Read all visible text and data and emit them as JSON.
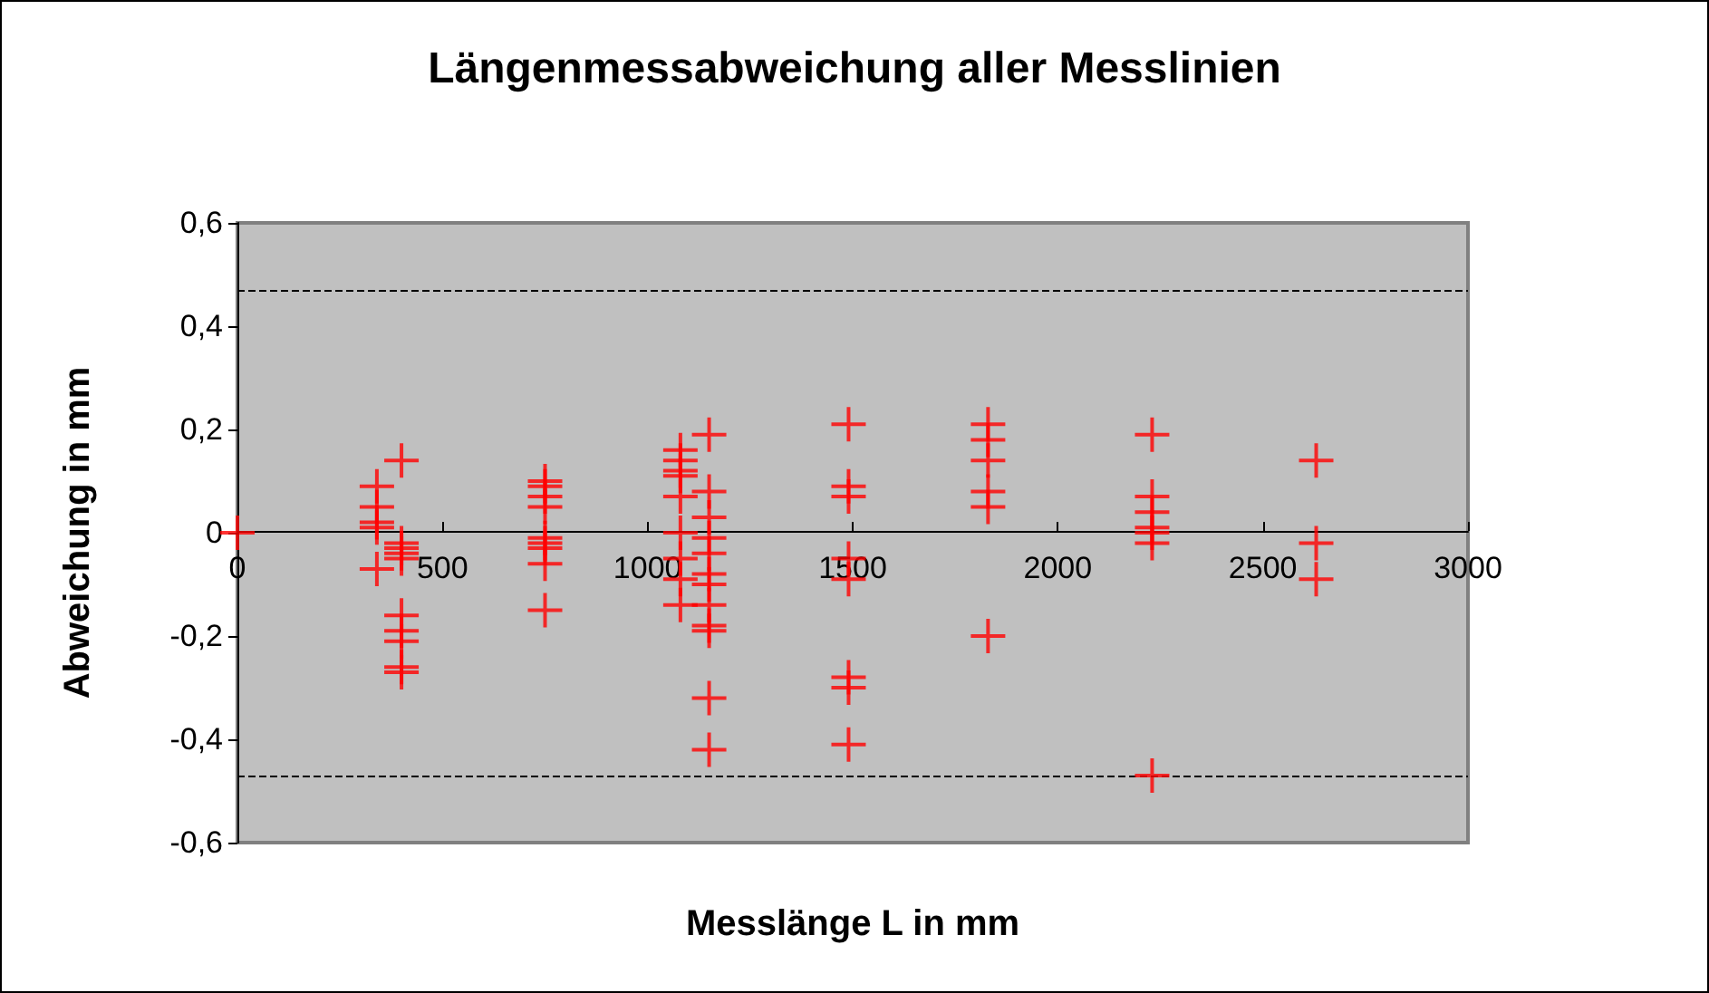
{
  "chart_data": {
    "type": "scatter",
    "title": "Längenmessabweichung aller Messlinien",
    "xlabel": "Messlänge L in mm",
    "ylabel": "Abweichung in mm",
    "x": [
      0,
      340,
      340,
      340,
      340,
      340,
      400,
      400,
      400,
      400,
      400,
      400,
      400,
      400,
      400,
      400,
      750,
      750,
      750,
      750,
      750,
      750,
      750,
      750,
      750,
      1080,
      1080,
      1080,
      1080,
      1080,
      1080,
      1080,
      1080,
      1080,
      1150,
      1150,
      1150,
      1150,
      1150,
      1150,
      1150,
      1150,
      1150,
      1150,
      1150,
      1150,
      1490,
      1490,
      1490,
      1490,
      1490,
      1490,
      1490,
      1490,
      1830,
      1830,
      1830,
      1830,
      1830,
      1830,
      2230,
      2230,
      2230,
      2230,
      2230,
      2230,
      2230,
      2630,
      2630,
      2630
    ],
    "series": [
      {
        "color": "#ff0000",
        "values": [
          0,
          0.09,
          0.05,
          0.02,
          0.01,
          -0.07,
          0.14,
          -0.02,
          -0.03,
          -0.04,
          -0.05,
          -0.16,
          -0.19,
          -0.21,
          -0.26,
          -0.27,
          0.1,
          0.09,
          0.07,
          0.05,
          -0.01,
          -0.02,
          -0.03,
          -0.06,
          -0.15,
          0.16,
          0.14,
          0.12,
          0.11,
          0.07,
          0,
          -0.05,
          -0.09,
          -0.14,
          0.19,
          0.08,
          0.03,
          -0.01,
          -0.04,
          -0.08,
          -0.1,
          -0.14,
          -0.18,
          -0.19,
          -0.32,
          -0.42,
          0.21,
          0.09,
          0.07,
          -0.05,
          -0.09,
          -0.28,
          -0.3,
          -0.41,
          0.21,
          0.18,
          0.14,
          0.08,
          0.05,
          -0.2,
          0.19,
          0.07,
          0.04,
          0.01,
          0,
          -0.02,
          -0.47,
          0.14,
          -0.02,
          -0.09
        ]
      }
    ],
    "xlim": [
      0,
      3000
    ],
    "xticks": [
      0,
      500,
      1000,
      1500,
      2000,
      2500,
      3000
    ],
    "ylim": [
      -0.6,
      0.6
    ],
    "yticks": [
      {
        "value": -0.6,
        "label": "-0,6"
      },
      {
        "value": -0.4,
        "label": "-0,4"
      },
      {
        "value": -0.2,
        "label": "-0,2"
      },
      {
        "value": 0,
        "label": "0"
      },
      {
        "value": 0.2,
        "label": "0,2"
      },
      {
        "value": 0.4,
        "label": "0,4"
      },
      {
        "value": 0.6,
        "label": "0,6"
      }
    ],
    "ref_lines": [
      {
        "axis": "y",
        "value": 0.465,
        "color": "#000000",
        "line_style": "dashed"
      },
      {
        "axis": "y",
        "value": -0.465,
        "color": "#000000",
        "line_style": "dashed"
      }
    ],
    "marker": "cross",
    "grid": false
  }
}
